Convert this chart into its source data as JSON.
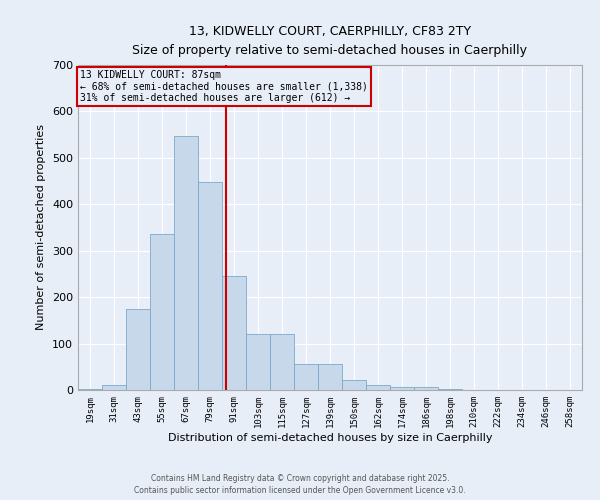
{
  "title1": "13, KIDWELLY COURT, CAERPHILLY, CF83 2TY",
  "title2": "Size of property relative to semi-detached houses in Caerphilly",
  "xlabel": "Distribution of semi-detached houses by size in Caerphilly",
  "ylabel": "Number of semi-detached properties",
  "annotation_line1": "13 KIDWELLY COURT: 87sqm",
  "annotation_line2": "← 68% of semi-detached houses are smaller (1,338)",
  "annotation_line3": "31% of semi-detached houses are larger (612) →",
  "property_size": 87,
  "bar_color": "#c8d8eb",
  "bar_edge_color": "#7aaac8",
  "vline_color": "#cc0000",
  "background_color": "#e8eef8",
  "categories": [
    "19sqm",
    "31sqm",
    "43sqm",
    "55sqm",
    "67sqm",
    "79sqm",
    "91sqm",
    "103sqm",
    "115sqm",
    "127sqm",
    "139sqm",
    "150sqm",
    "162sqm",
    "174sqm",
    "186sqm",
    "198sqm",
    "210sqm",
    "222sqm",
    "234sqm",
    "246sqm",
    "258sqm"
  ],
  "bin_edges": [
    13,
    25,
    37,
    49,
    61,
    73,
    85,
    97,
    109,
    121,
    133,
    145,
    157,
    169,
    181,
    193,
    205,
    217,
    229,
    241,
    253,
    265
  ],
  "values": [
    3,
    10,
    175,
    335,
    548,
    448,
    245,
    120,
    120,
    57,
    57,
    22,
    10,
    7,
    7,
    2,
    0,
    0,
    0,
    0,
    0
  ],
  "ylim": [
    0,
    700
  ],
  "yticks": [
    0,
    100,
    200,
    300,
    400,
    500,
    600,
    700
  ],
  "footer1": "Contains HM Land Registry data © Crown copyright and database right 2025.",
  "footer2": "Contains public sector information licensed under the Open Government Licence v3.0."
}
